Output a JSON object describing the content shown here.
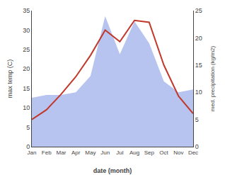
{
  "chart_data": {
    "type": "line",
    "categories": [
      "Jan",
      "Feb",
      "Mar",
      "Apr",
      "May",
      "Jun",
      "Jul",
      "Aug",
      "Sep",
      "Oct",
      "Nov",
      "Dec"
    ],
    "xlabel": "date (month)",
    "ylabel": "max temp (C)",
    "y2label": "med. precipitation (kg/m2)",
    "ylim": [
      0,
      35
    ],
    "yticks": [
      0,
      5,
      10,
      15,
      20,
      25,
      30,
      35
    ],
    "y2lim": [
      0,
      25
    ],
    "y2ticks": [
      0,
      5,
      10,
      15,
      20,
      25
    ],
    "grid": false,
    "series": [
      {
        "type": "area",
        "axis": "y2",
        "color": "#b8c4f0",
        "values": [
          9.0,
          9.5,
          9.5,
          10.0,
          13.0,
          24.0,
          17.0,
          23.0,
          19.0,
          12.0,
          10.0,
          10.5
        ]
      },
      {
        "type": "line",
        "color": "#c0392b",
        "values": [
          7.0,
          9.5,
          13.5,
          18.0,
          23.5,
          30.0,
          27.0,
          32.5,
          32.0,
          21.0,
          13.0,
          8.5
        ]
      }
    ]
  }
}
